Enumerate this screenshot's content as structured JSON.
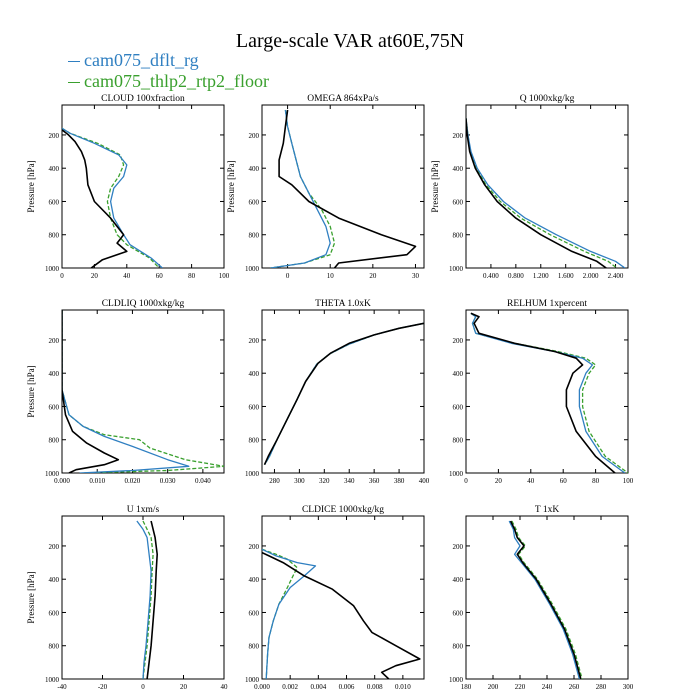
{
  "figure": {
    "title": "Large-scale VAR at60E,75N",
    "legend": [
      {
        "name": "cam075_dflt_rg",
        "color": "#2f7fc1"
      },
      {
        "name": "cam075_thlp2_rtp2_floor",
        "color": "#3aa02e"
      }
    ],
    "ref_color": "#000000"
  },
  "chart_data": [
    {
      "type": "line",
      "title": "CLOUD 100xfraction",
      "ylabel": "Pressure [hPa]",
      "xlim": [
        0,
        100
      ],
      "ylim": [
        1000,
        20
      ],
      "xticks": [
        0,
        20,
        40,
        60,
        80,
        100
      ],
      "xtick_labels": [
        "0",
        "20",
        "40",
        "60",
        "80",
        "100"
      ],
      "yticks": [
        200,
        400,
        600,
        800,
        1000
      ],
      "ytick_labels": [
        "200",
        "400",
        "600",
        "800",
        "1000"
      ],
      "series": [
        {
          "role": "ref",
          "x": [
            0,
            4,
            8,
            12,
            14,
            15,
            16,
            20,
            30,
            38,
            34,
            40,
            25,
            18
          ],
          "y": [
            170,
            200,
            240,
            300,
            350,
            400,
            500,
            600,
            700,
            800,
            850,
            900,
            950,
            1000
          ]
        },
        {
          "role": "model1",
          "x": [
            0,
            5,
            20,
            35,
            40,
            38,
            32,
            30,
            32,
            38,
            42,
            55,
            62
          ],
          "y": [
            160,
            190,
            250,
            320,
            380,
            450,
            520,
            600,
            700,
            800,
            860,
            940,
            1000
          ]
        },
        {
          "role": "model2",
          "x": [
            0,
            5,
            22,
            36,
            38,
            35,
            30,
            28,
            30,
            34,
            40,
            54,
            60
          ],
          "y": [
            160,
            190,
            250,
            320,
            380,
            450,
            520,
            600,
            700,
            800,
            860,
            940,
            1000
          ]
        }
      ]
    },
    {
      "type": "line",
      "title": "OMEGA 864xPa/s",
      "ylabel": "Pressure [hPa]",
      "xlim": [
        -6,
        32
      ],
      "ylim": [
        1000,
        20
      ],
      "xticks": [
        0,
        10,
        20,
        30
      ],
      "xtick_labels": [
        "0",
        "10",
        "20",
        "30"
      ],
      "yticks": [
        200,
        400,
        600,
        800,
        1000
      ],
      "ytick_labels": [
        "200",
        "400",
        "600",
        "800",
        "1000"
      ],
      "series": [
        {
          "role": "ref",
          "x": [
            0,
            -0.5,
            -1,
            -2,
            -2,
            1,
            5,
            12,
            22,
            30,
            28,
            12,
            11
          ],
          "y": [
            50,
            150,
            250,
            350,
            450,
            500,
            600,
            700,
            800,
            870,
            920,
            970,
            1000
          ]
        },
        {
          "role": "model1",
          "x": [
            -0.5,
            0,
            1,
            2,
            3,
            5,
            7,
            9,
            10,
            9,
            4,
            -4
          ],
          "y": [
            50,
            150,
            250,
            350,
            450,
            550,
            650,
            750,
            850,
            920,
            970,
            1000
          ]
        },
        {
          "role": "model2",
          "x": [
            -0.5,
            0,
            1,
            2,
            3,
            5,
            8,
            10,
            11,
            10,
            4,
            -4
          ],
          "y": [
            50,
            150,
            250,
            350,
            450,
            550,
            650,
            750,
            850,
            920,
            970,
            1000
          ]
        }
      ]
    },
    {
      "type": "line",
      "title": "Q 1000xkg/kg",
      "ylabel": "Pressure [hPa]",
      "xlim": [
        0,
        2.6
      ],
      "ylim": [
        1000,
        20
      ],
      "xticks": [
        0.4,
        0.8,
        1.2,
        1.6,
        2.0,
        2.4
      ],
      "xtick_labels": [
        "0.400",
        "0.800",
        "1.200",
        "1.600",
        "2.000",
        "2.400"
      ],
      "yticks": [
        200,
        400,
        600,
        800,
        1000
      ],
      "ytick_labels": [
        "200",
        "400",
        "600",
        "800",
        "1000"
      ],
      "series": [
        {
          "role": "ref",
          "x": [
            0,
            0.02,
            0.06,
            0.15,
            0.3,
            0.5,
            0.8,
            1.2,
            1.7,
            2.1,
            2.25
          ],
          "y": [
            100,
            200,
            300,
            400,
            500,
            600,
            700,
            800,
            900,
            960,
            1000
          ]
        },
        {
          "role": "model1",
          "x": [
            0,
            0.03,
            0.08,
            0.18,
            0.35,
            0.6,
            0.95,
            1.45,
            2.0,
            2.4,
            2.55
          ],
          "y": [
            100,
            200,
            300,
            400,
            500,
            600,
            700,
            800,
            900,
            960,
            1000
          ]
        },
        {
          "role": "model2",
          "x": [
            0,
            0.03,
            0.07,
            0.16,
            0.32,
            0.55,
            0.88,
            1.35,
            1.9,
            2.28,
            2.42
          ],
          "y": [
            100,
            200,
            300,
            400,
            500,
            600,
            700,
            800,
            900,
            960,
            1000
          ]
        }
      ]
    },
    {
      "type": "line",
      "title": "CLDLIQ 1000xkg/kg",
      "ylabel": "Pressure [hPa]",
      "xlim": [
        0,
        0.046
      ],
      "ylim": [
        1000,
        20
      ],
      "xticks": [
        0,
        0.01,
        0.02,
        0.03,
        0.04
      ],
      "xtick_labels": [
        "0.000",
        "0.010",
        "0.020",
        "0.030",
        "0.040"
      ],
      "yticks": [
        200,
        400,
        600,
        800,
        1000
      ],
      "ytick_labels": [
        "200",
        "400",
        "600",
        "800",
        "1000"
      ],
      "series": [
        {
          "role": "ref",
          "x": [
            0,
            0,
            0.001,
            0.003,
            0.007,
            0.012,
            0.016,
            0.012,
            0.004,
            0.002
          ],
          "y": [
            20,
            500,
            650,
            750,
            820,
            880,
            920,
            950,
            980,
            1000
          ]
        },
        {
          "role": "model1",
          "x": [
            0,
            0,
            0.002,
            0.006,
            0.012,
            0.02,
            0.03,
            0.036,
            0.02,
            0.005
          ],
          "y": [
            20,
            500,
            650,
            720,
            780,
            840,
            920,
            960,
            985,
            1000
          ]
        },
        {
          "role": "model2",
          "x": [
            0,
            0,
            0.002,
            0.006,
            0.012,
            0.022,
            0.025,
            0.035,
            0.046,
            0.03,
            0.006
          ],
          "y": [
            20,
            500,
            650,
            720,
            770,
            800,
            850,
            920,
            960,
            985,
            1000
          ]
        }
      ]
    },
    {
      "type": "line",
      "title": "THETA 1.0xK",
      "ylabel": "",
      "xlim": [
        270,
        400
      ],
      "ylim": [
        1000,
        20
      ],
      "xticks": [
        280,
        300,
        320,
        340,
        360,
        380,
        400
      ],
      "xtick_labels": [
        "280",
        "300",
        "320",
        "340",
        "360",
        "380",
        "400"
      ],
      "yticks": [
        200,
        400,
        600,
        800,
        1000
      ],
      "ytick_labels": [
        "200",
        "400",
        "600",
        "800",
        "1000"
      ],
      "series": [
        {
          "role": "ref",
          "x": [
            400,
            380,
            360,
            340,
            325,
            315,
            305,
            298,
            290,
            282,
            275,
            272
          ],
          "y": [
            100,
            130,
            170,
            220,
            280,
            340,
            450,
            560,
            680,
            800,
            900,
            950
          ]
        },
        {
          "role": "model1",
          "x": [
            400,
            380,
            360,
            340,
            324,
            314,
            305,
            298,
            290,
            282,
            276,
            272
          ],
          "y": [
            100,
            130,
            170,
            225,
            285,
            345,
            450,
            560,
            680,
            800,
            900,
            950
          ]
        },
        {
          "role": "model2",
          "x": [
            400,
            380,
            360,
            340,
            324,
            314,
            305,
            298,
            290,
            282,
            276,
            272
          ],
          "y": [
            100,
            130,
            170,
            225,
            285,
            345,
            450,
            560,
            680,
            800,
            900,
            950
          ]
        }
      ]
    },
    {
      "type": "line",
      "title": "RELHUM 1xpercent",
      "ylabel": "",
      "xlim": [
        0,
        100
      ],
      "ylim": [
        1000,
        20
      ],
      "xticks": [
        0,
        20,
        40,
        60,
        80,
        100
      ],
      "xtick_labels": [
        "0",
        "20",
        "40",
        "60",
        "80",
        "100"
      ],
      "yticks": [
        200,
        400,
        600,
        800,
        1000
      ],
      "ytick_labels": [
        "200",
        "400",
        "600",
        "800",
        "1000"
      ],
      "series": [
        {
          "role": "ref",
          "x": [
            3,
            8,
            5,
            8,
            30,
            55,
            68,
            72,
            66,
            62,
            62,
            68,
            80,
            92
          ],
          "y": [
            40,
            60,
            100,
            160,
            220,
            270,
            310,
            350,
            400,
            500,
            600,
            750,
            900,
            1000
          ]
        },
        {
          "role": "model1",
          "x": [
            3,
            6,
            4,
            6,
            28,
            55,
            72,
            78,
            74,
            70,
            70,
            74,
            84,
            98
          ],
          "y": [
            40,
            60,
            100,
            160,
            220,
            270,
            310,
            350,
            400,
            500,
            600,
            750,
            900,
            1000
          ]
        },
        {
          "role": "model2",
          "x": [
            3,
            6,
            4,
            6,
            30,
            57,
            74,
            80,
            76,
            72,
            72,
            76,
            86,
            100
          ],
          "y": [
            40,
            60,
            100,
            160,
            220,
            270,
            310,
            350,
            400,
            500,
            600,
            750,
            900,
            1000
          ]
        }
      ]
    },
    {
      "type": "line",
      "title": "U 1xm/s",
      "ylabel": "Pressure [hPa]",
      "xlim": [
        -40,
        40
      ],
      "ylim": [
        1000,
        20
      ],
      "xticks": [
        -40,
        -20,
        0,
        20,
        40
      ],
      "xtick_labels": [
        "-40",
        "-20",
        "0",
        "20",
        "40"
      ],
      "yticks": [
        200,
        400,
        600,
        800,
        1000
      ],
      "ytick_labels": [
        "200",
        "400",
        "600",
        "800",
        "1000"
      ],
      "series": [
        {
          "role": "ref",
          "x": [
            4,
            5,
            6,
            7,
            6.5,
            6,
            5,
            4,
            3,
            2
          ],
          "y": [
            50,
            100,
            150,
            250,
            350,
            500,
            650,
            800,
            900,
            1000
          ]
        },
        {
          "role": "model1",
          "x": [
            -3,
            0,
            2,
            3,
            4,
            3.5,
            2.5,
            1.5,
            0.5,
            0
          ],
          "y": [
            50,
            100,
            150,
            250,
            350,
            500,
            650,
            800,
            900,
            1000
          ]
        },
        {
          "role": "model2",
          "x": [
            0,
            2,
            4,
            5,
            4.5,
            4,
            3,
            2,
            1,
            0
          ],
          "y": [
            50,
            100,
            150,
            250,
            350,
            500,
            650,
            800,
            900,
            1000
          ]
        }
      ]
    },
    {
      "type": "line",
      "title": "CLDICE 1000xkg/kg",
      "ylabel": "",
      "xlim": [
        0,
        0.0115
      ],
      "ylim": [
        1000,
        20
      ],
      "xticks": [
        0,
        0.002,
        0.004,
        0.006,
        0.008,
        0.01
      ],
      "xtick_labels": [
        "0.000",
        "0.002",
        "0.004",
        "0.006",
        "0.008",
        "0.010"
      ],
      "yticks": [
        200,
        400,
        600,
        800,
        1000
      ],
      "ytick_labels": [
        "200",
        "400",
        "600",
        "800",
        "1000"
      ],
      "series": [
        {
          "role": "ref",
          "x": [
            0,
            0.0005,
            0.0015,
            0.003,
            0.005,
            0.0065,
            0.0072,
            0.0078,
            0.0095,
            0.0112,
            0.0095,
            0.0085,
            0.009
          ],
          "y": [
            240,
            260,
            300,
            380,
            460,
            560,
            650,
            720,
            800,
            880,
            920,
            960,
            1000
          ]
        },
        {
          "role": "model1",
          "x": [
            0,
            0.001,
            0.0025,
            0.0038,
            0.003,
            0.002,
            0.0012,
            0.0008,
            0.0005,
            0.0004,
            0.0003
          ],
          "y": [
            220,
            260,
            300,
            320,
            380,
            450,
            550,
            650,
            750,
            850,
            1000
          ]
        },
        {
          "role": "model2",
          "x": [
            0,
            0.001,
            0.0018,
            0.0025,
            0.0022,
            0.0018,
            0.0012,
            0.0008,
            0.0005,
            0.0004,
            0.0003
          ],
          "y": [
            220,
            250,
            280,
            330,
            380,
            450,
            550,
            650,
            750,
            850,
            1000
          ]
        }
      ]
    },
    {
      "type": "line",
      "title": "T 1xK",
      "ylabel": "",
      "xlim": [
        180,
        300
      ],
      "ylim": [
        1000,
        20
      ],
      "xticks": [
        180,
        200,
        220,
        240,
        260,
        280,
        300
      ],
      "xtick_labels": [
        "180",
        "200",
        "220",
        "240",
        "260",
        "280",
        "300"
      ],
      "yticks": [
        200,
        400,
        600,
        800,
        1000
      ],
      "ytick_labels": [
        "200",
        "400",
        "600",
        "800",
        "1000"
      ],
      "series": [
        {
          "role": "ref",
          "x": [
            213,
            216,
            218,
            223,
            218,
            222,
            232,
            243,
            253,
            260,
            265
          ],
          "y": [
            50,
            100,
            150,
            200,
            250,
            300,
            400,
            550,
            700,
            850,
            1000
          ]
        },
        {
          "role": "model1",
          "x": [
            212,
            215,
            216,
            220,
            216,
            221,
            231,
            242,
            252,
            259,
            264
          ],
          "y": [
            50,
            100,
            150,
            200,
            250,
            300,
            400,
            550,
            700,
            850,
            1000
          ]
        },
        {
          "role": "model2",
          "x": [
            214,
            217,
            219,
            224,
            219,
            223,
            233,
            244,
            254,
            261,
            266
          ],
          "y": [
            50,
            100,
            150,
            200,
            250,
            300,
            400,
            550,
            700,
            850,
            1000
          ]
        }
      ]
    }
  ]
}
